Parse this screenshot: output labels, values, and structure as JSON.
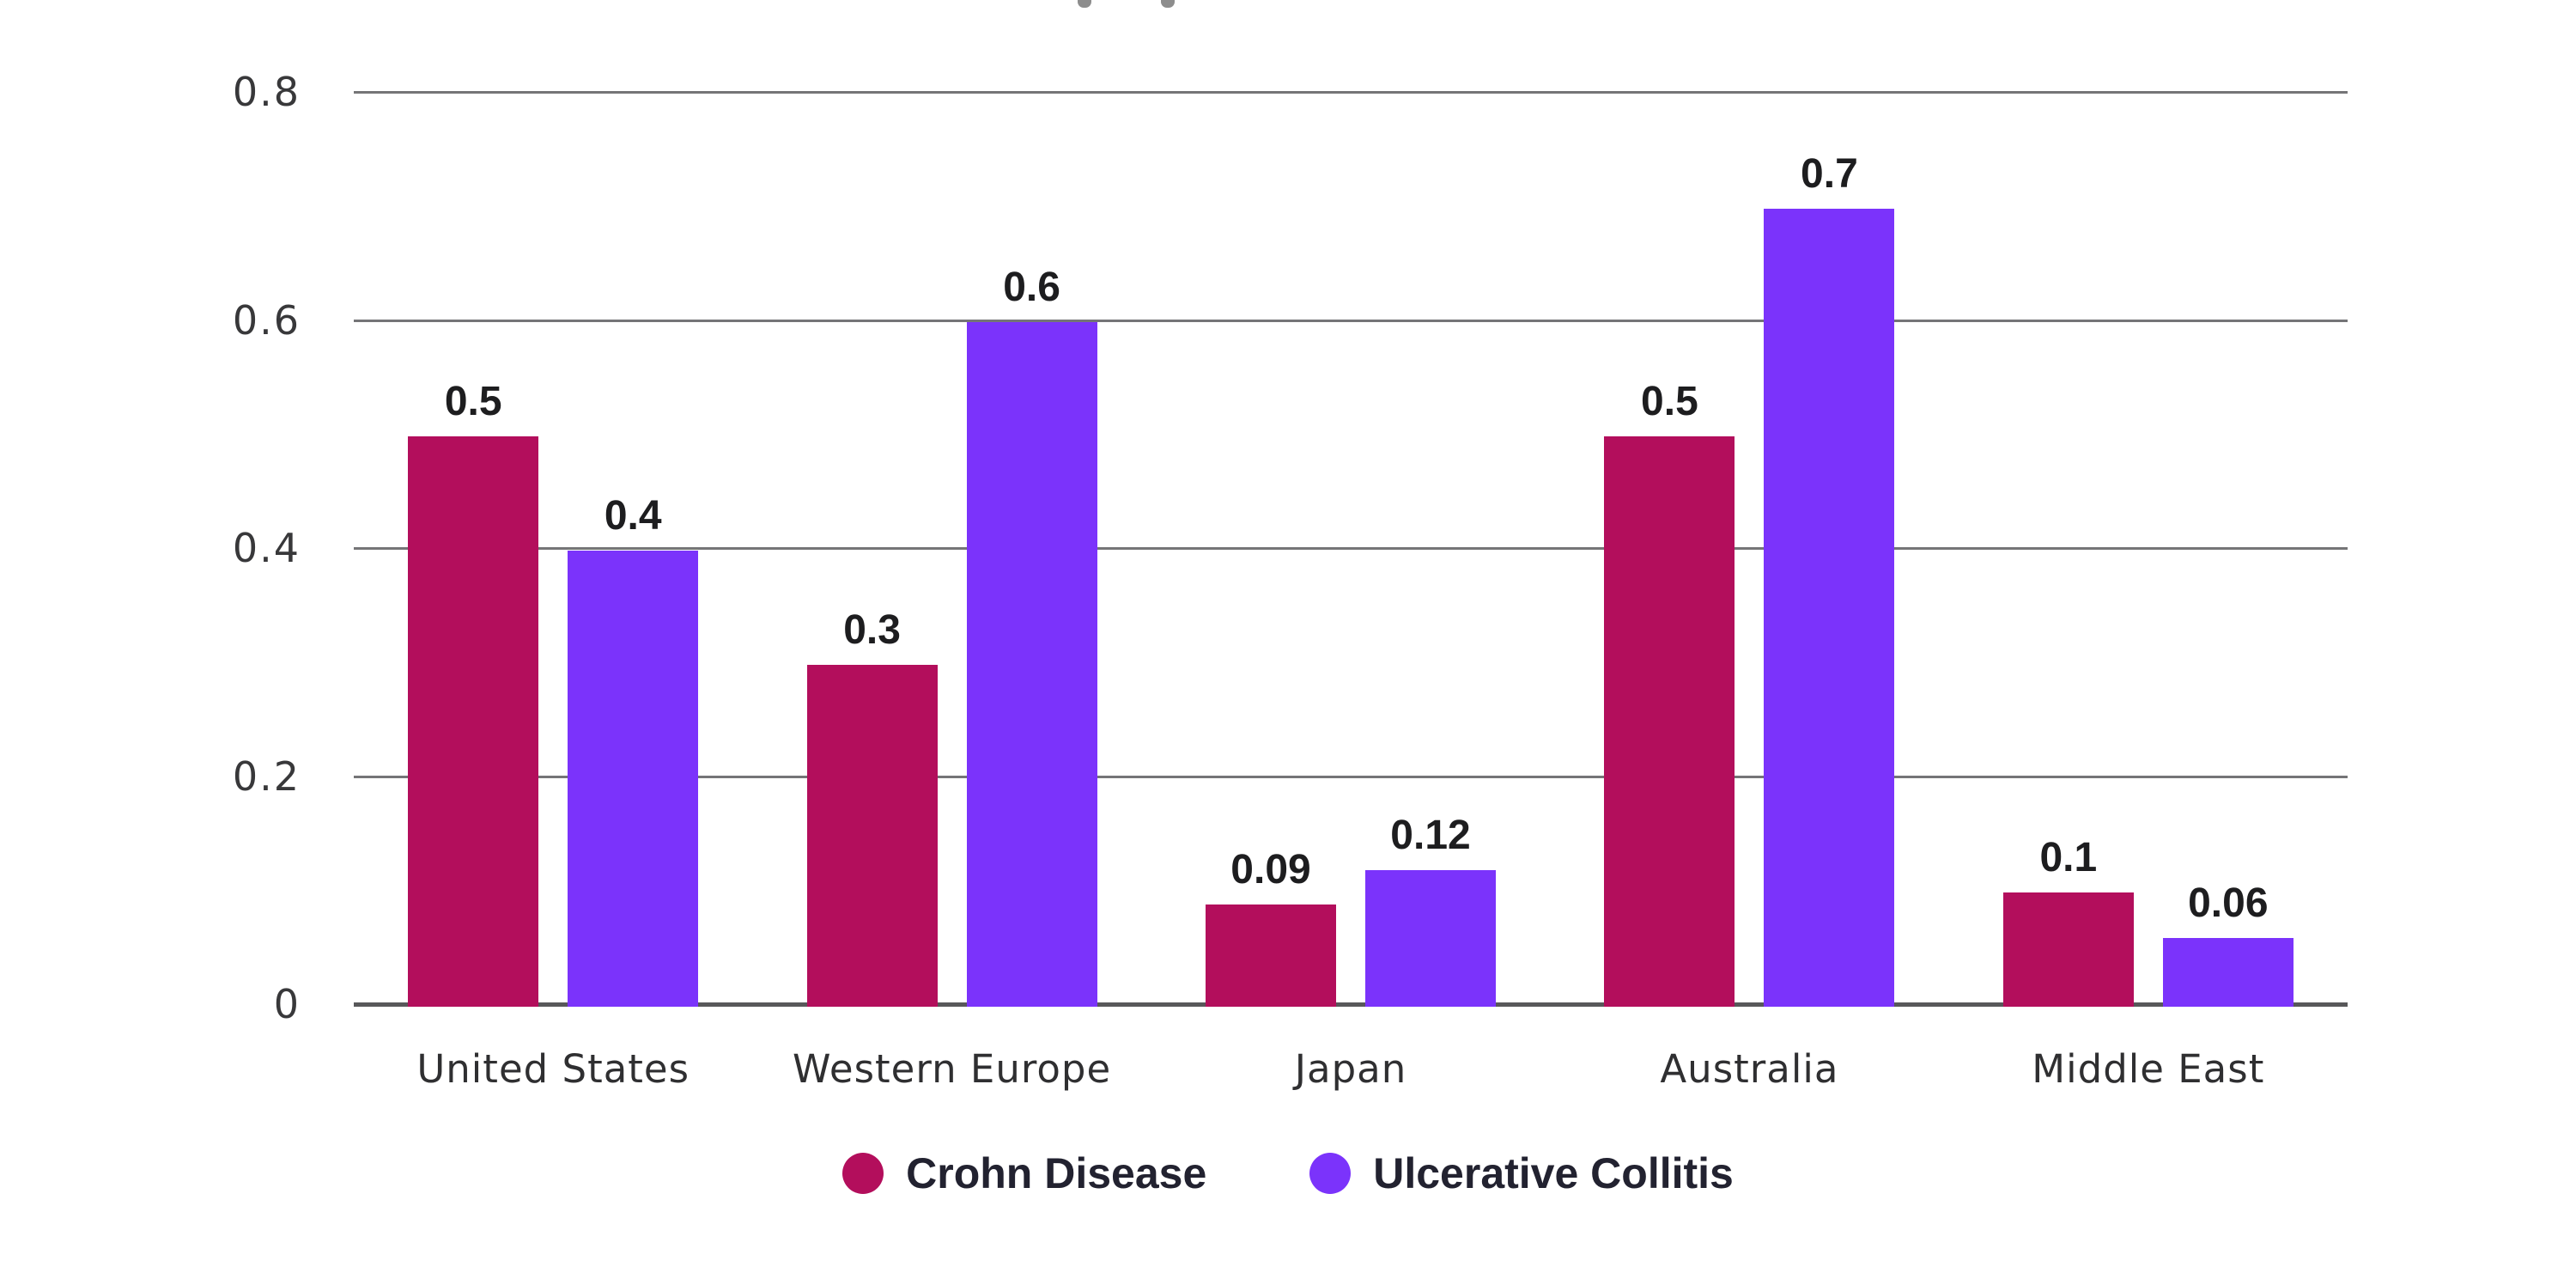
{
  "chart_data": {
    "type": "bar",
    "categories": [
      "United States",
      "Western Europe",
      "Japan",
      "Australia",
      "Middle East"
    ],
    "series": [
      {
        "name": "Crohn Disease",
        "color": "#B30E5C",
        "values": [
          0.5,
          0.3,
          0.09,
          0.5,
          0.1
        ],
        "value_labels": [
          "0.5",
          "0.3",
          "0.09",
          "0.5",
          "0.1"
        ]
      },
      {
        "name": "Ulcerative Collitis",
        "color": "#7B33FB",
        "values": [
          0.4,
          0.6,
          0.12,
          0.7,
          0.06
        ],
        "value_labels": [
          "0.4",
          "0.6",
          "0.12",
          "0.7",
          "0.06"
        ]
      }
    ],
    "title": "",
    "xlabel": "",
    "ylabel": "",
    "ylim": [
      0,
      0.8
    ],
    "yticks": [
      0,
      0.2,
      0.4,
      0.6,
      0.8
    ],
    "ytick_labels": [
      "0",
      "0.2",
      "0.4",
      "0.6",
      "0.8"
    ],
    "grid": true,
    "legend_position": "bottom",
    "background_color": "#ffffff",
    "gridline_color": "#757577",
    "axis_line_color": "#58585a"
  }
}
